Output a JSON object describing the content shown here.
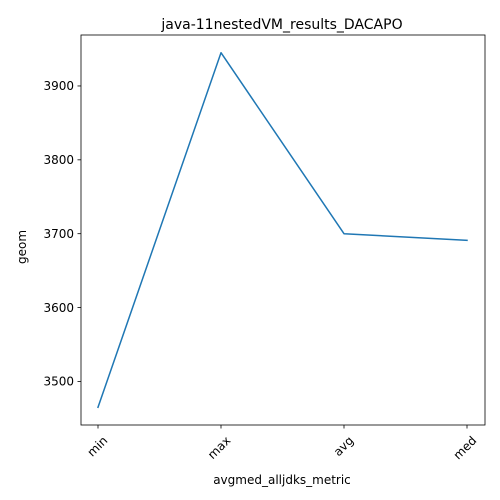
{
  "chart_data": {
    "type": "line",
    "title": "java-11nestedVM_results_DACAPO",
    "xlabel": "avgmed_alljdks_metric",
    "ylabel": "geom",
    "categories": [
      "min",
      "max",
      "avg",
      "med"
    ],
    "series": [
      {
        "name": "geom",
        "values": [
          3465,
          3945,
          3700,
          3691
        ],
        "color": "#1f77b4"
      }
    ],
    "ylim": [
      3441,
      3969
    ],
    "yticks": [
      3500,
      3600,
      3700,
      3800,
      3900
    ],
    "grid": false,
    "legend": false
  }
}
